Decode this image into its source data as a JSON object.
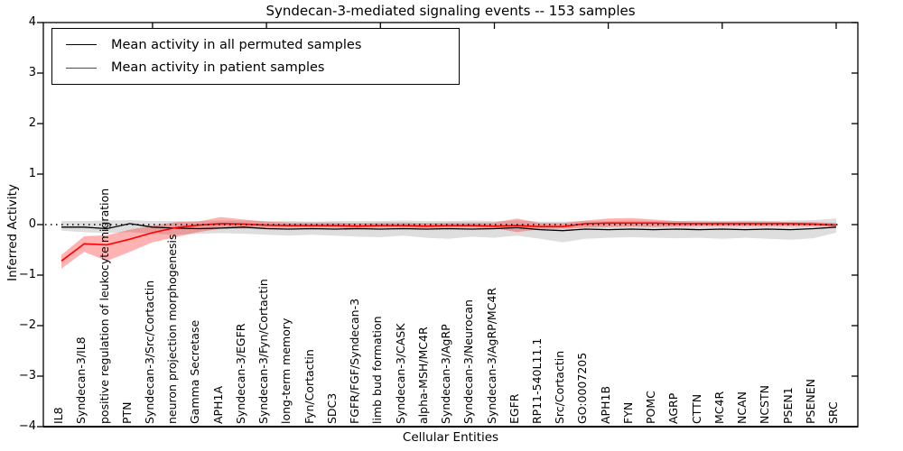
{
  "chart_data": {
    "type": "line",
    "title": "Syndecan-3-mediated signaling events -- 153 samples",
    "xlabel": "Cellular Entities",
    "ylabel": "Inferred Activity",
    "ylim": [
      -4,
      4
    ],
    "yticks": [
      4,
      3,
      2,
      1,
      0,
      -1,
      -2,
      -3,
      -4
    ],
    "grid": false,
    "legend_position": "upper left",
    "zero_line": true,
    "categories": [
      "IL8",
      "Syndecan-3/IL8",
      "positive regulation of leukocyte migration",
      "PTN",
      "Syndecan-3/Src/Cortactin",
      "neuron projection morphogenesis",
      "Gamma Secretase",
      "APH1A",
      "Syndecan-3/EGFR",
      "Syndecan-3/Fyn/Cortactin",
      "long-term memory",
      "Fyn/Cortactin",
      "SDC3",
      "FGFR/FGF/Syndecan-3",
      "limb bud formation",
      "Syndecan-3/CASK",
      "alpha-MSH/MC4R",
      "Syndecan-3/AgRP",
      "Syndecan-3/Neurocan",
      "Syndecan-3/AgRP/MC4R",
      "EGFR",
      "RP11-540L11.1",
      "Src/Cortactin",
      "GO:0007205",
      "APH1B",
      "FYN",
      "POMC",
      "AGRP",
      "CTTN",
      "MC4R",
      "NCAN",
      "NCSTN",
      "PSEN1",
      "PSENEN",
      "SRC"
    ],
    "series": [
      {
        "name": "Mean activity in all permuted samples",
        "color": "#000000",
        "band_color": "#000000",
        "band_opacity": 0.13,
        "values": [
          -0.05,
          -0.05,
          -0.08,
          0.02,
          -0.05,
          -0.07,
          -0.08,
          -0.07,
          -0.05,
          -0.08,
          -0.09,
          -0.08,
          -0.09,
          -0.08,
          -0.09,
          -0.08,
          -0.09,
          -0.08,
          -0.09,
          -0.08,
          -0.06,
          -0.1,
          -0.12,
          -0.09,
          -0.1,
          -0.09,
          -0.1,
          -0.09,
          -0.1,
          -0.09,
          -0.1,
          -0.09,
          -0.1,
          -0.08,
          -0.05
        ],
        "band_high": [
          0.07,
          0.07,
          0.08,
          0.09,
          0.07,
          0.07,
          0.07,
          0.08,
          0.08,
          0.07,
          0.07,
          0.06,
          0.07,
          0.07,
          0.07,
          0.08,
          0.07,
          0.07,
          0.08,
          0.07,
          0.08,
          0.06,
          0.06,
          0.07,
          0.07,
          0.08,
          0.07,
          0.07,
          0.08,
          0.07,
          0.08,
          0.07,
          0.08,
          0.09,
          0.12
        ],
        "band_low": [
          -0.12,
          -0.15,
          -0.17,
          -0.15,
          -0.18,
          -0.2,
          -0.18,
          -0.17,
          -0.18,
          -0.2,
          -0.22,
          -0.2,
          -0.22,
          -0.24,
          -0.25,
          -0.22,
          -0.26,
          -0.28,
          -0.24,
          -0.26,
          -0.22,
          -0.28,
          -0.35,
          -0.28,
          -0.26,
          -0.25,
          -0.26,
          -0.27,
          -0.26,
          -0.28,
          -0.26,
          -0.28,
          -0.3,
          -0.27,
          -0.16
        ]
      },
      {
        "name": "Mean activity in patient samples",
        "color": "#ff0000",
        "band_color": "#ff0000",
        "band_opacity": 0.3,
        "values": [
          -0.72,
          -0.38,
          -0.4,
          -0.29,
          -0.16,
          -0.06,
          -0.01,
          0.02,
          0.01,
          -0.01,
          -0.02,
          -0.02,
          -0.02,
          -0.03,
          -0.02,
          -0.02,
          -0.03,
          -0.02,
          -0.02,
          -0.03,
          -0.02,
          -0.04,
          -0.04,
          0.02,
          0.03,
          0.03,
          0.03,
          0.02,
          0.02,
          0.02,
          0.02,
          0.02,
          0.02,
          0.01,
          -0.01
        ],
        "band_high": [
          -0.6,
          -0.23,
          -0.21,
          -0.1,
          -0.02,
          0.05,
          0.06,
          0.15,
          0.1,
          0.06,
          0.04,
          0.04,
          0.04,
          0.03,
          0.04,
          0.04,
          0.03,
          0.04,
          0.04,
          0.04,
          0.12,
          0.03,
          0.03,
          0.08,
          0.12,
          0.13,
          0.1,
          0.07,
          0.06,
          0.06,
          0.06,
          0.06,
          0.05,
          0.05,
          0.03
        ],
        "band_low": [
          -0.87,
          -0.54,
          -0.72,
          -0.54,
          -0.35,
          -0.25,
          -0.15,
          -0.08,
          -0.08,
          -0.07,
          -0.06,
          -0.06,
          -0.06,
          -0.07,
          -0.06,
          -0.06,
          -0.07,
          -0.06,
          -0.06,
          -0.07,
          -0.15,
          -0.09,
          -0.08,
          -0.06,
          -0.05,
          -0.04,
          -0.05,
          -0.04,
          -0.03,
          -0.03,
          -0.03,
          -0.03,
          -0.03,
          -0.03,
          -0.04
        ]
      }
    ]
  },
  "colors": {
    "background": "#ffffff",
    "axis": "#000000",
    "permuted_line": "#000000",
    "patient_line": "#ff0000"
  }
}
